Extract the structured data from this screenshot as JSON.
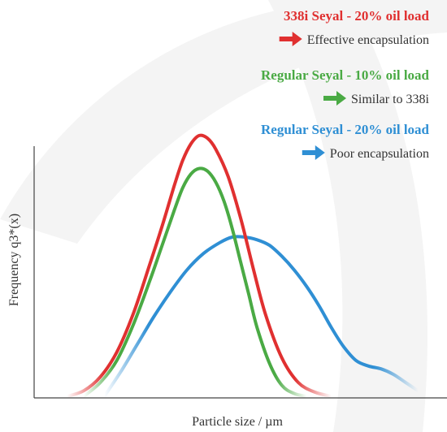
{
  "chart_data": {
    "type": "line",
    "xlabel": "Particle size / µm",
    "ylabel": "Frequency q3*(x)",
    "xlim": [
      0,
      100
    ],
    "ylim": [
      0,
      100
    ],
    "grid": false,
    "legend_position": "top-right",
    "series": [
      {
        "name": "338i Seyal - 20% oil load",
        "note": "Effective encapsulation",
        "color": "#e03030",
        "x": [
          8,
          12,
          16,
          20,
          24,
          28,
          31,
          34,
          36,
          38,
          40,
          42,
          44,
          47,
          50,
          53,
          56,
          60,
          64,
          68,
          72
        ],
        "values": [
          0,
          2,
          7,
          16,
          30,
          48,
          62,
          77,
          86,
          92,
          95,
          94,
          90,
          80,
          65,
          47,
          30,
          14,
          5,
          1.5,
          0
        ]
      },
      {
        "name": "Regular Seyal - 10% oil load",
        "note": "Similar to 338i",
        "color": "#4aaa44",
        "x": [
          12,
          16,
          20,
          24,
          28,
          31,
          34,
          36,
          38,
          40,
          42,
          44,
          46,
          48,
          50,
          52,
          54,
          57,
          60,
          63,
          66
        ],
        "values": [
          0,
          5,
          13,
          26,
          42,
          55,
          68,
          76,
          81,
          83,
          82,
          78,
          71,
          61,
          49,
          37,
          25,
          12,
          4,
          1,
          0
        ]
      },
      {
        "name": "Regular Seyal - 20% oil load",
        "note": "Poor encapsulation",
        "color": "#2f8fd4",
        "x": [
          17,
          21,
          25,
          29,
          33,
          37,
          41,
          45,
          48,
          51,
          54,
          57,
          60,
          63,
          66,
          69,
          72,
          75,
          78,
          81,
          84,
          87,
          90,
          93
        ],
        "values": [
          0,
          9,
          19,
          29,
          38,
          46,
          52,
          56,
          58,
          58,
          57,
          55,
          51,
          46,
          40,
          33,
          25,
          18,
          13,
          11,
          10,
          8,
          5,
          2
        ]
      }
    ]
  }
}
